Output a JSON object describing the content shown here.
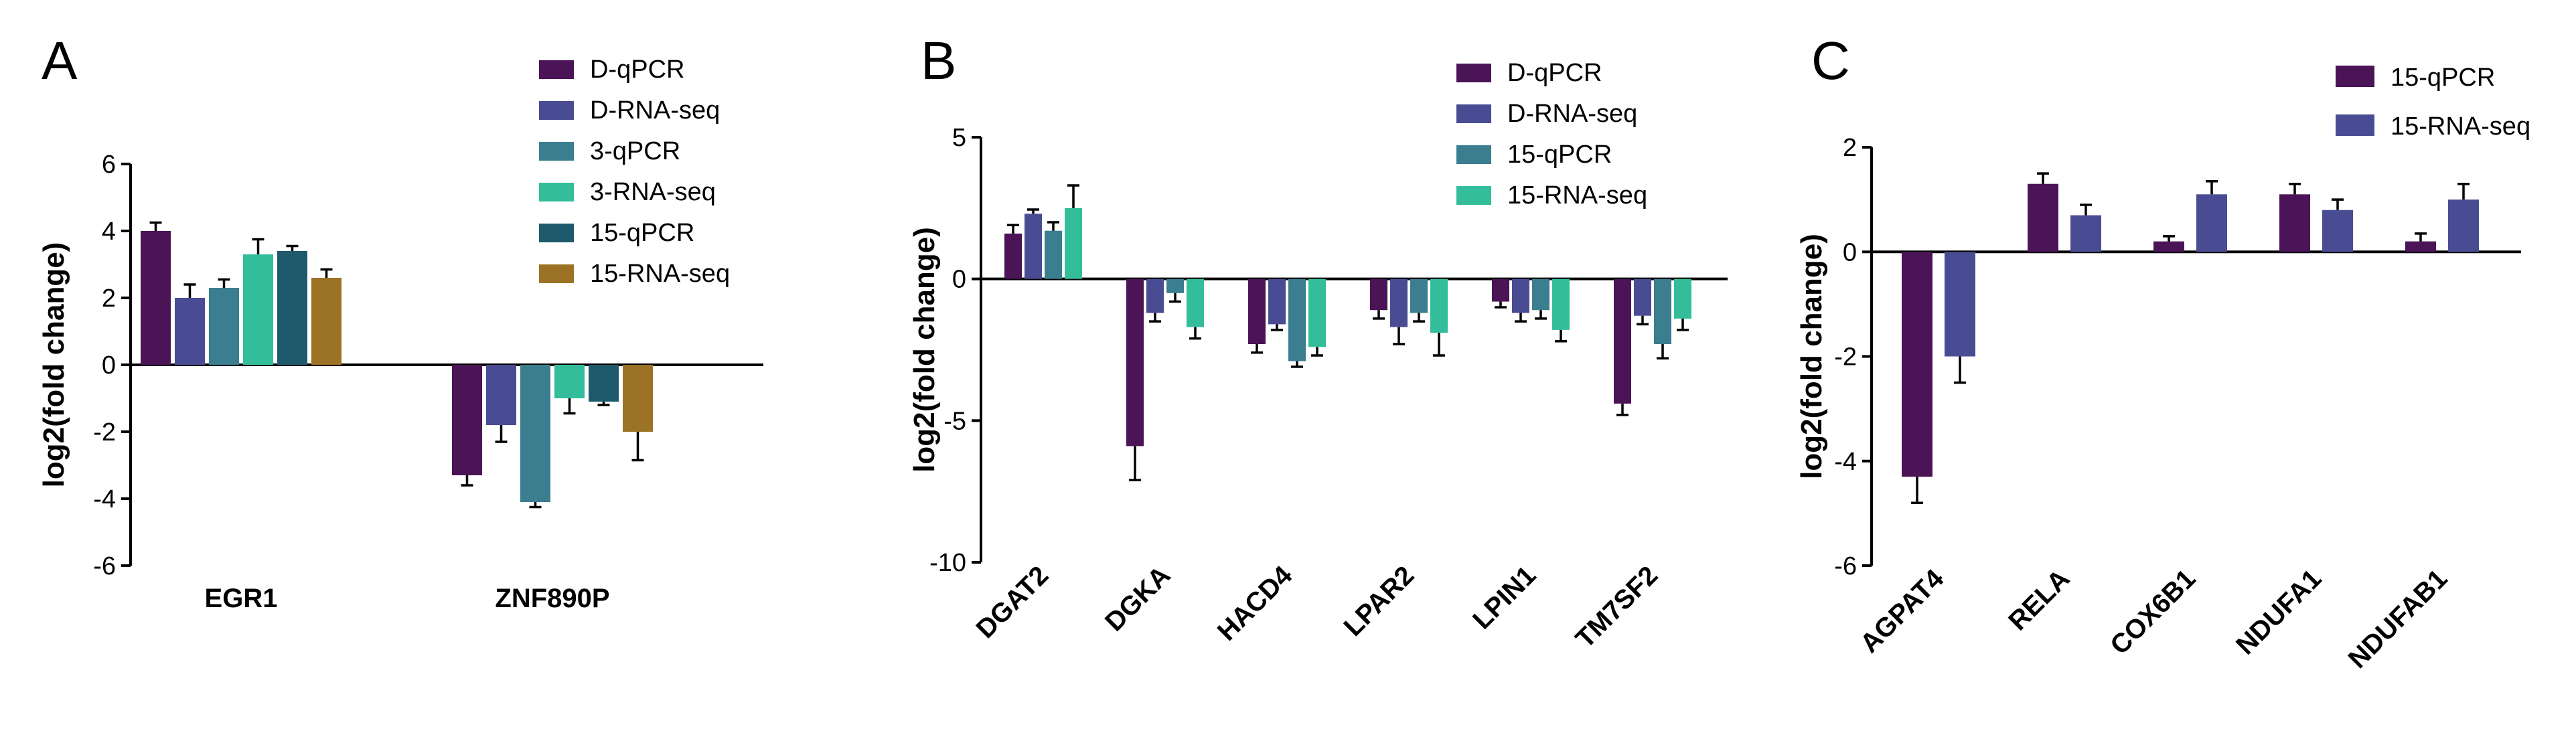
{
  "colors": {
    "D-qPCR": "#4a1456",
    "D-RNA-seq": "#4a4c93",
    "3-qPCR": "#3a7e90",
    "3-RNA-seq": "#33bd9a",
    "15-qPCR": "#1f5a6c",
    "15-RNA-seq": "#9c7325",
    "15-qPCR-B": "#3a7e90",
    "15-RNA-seq-B": "#33bd9a",
    "15-qPCR-C": "#4a1456",
    "15-RNA-seq-C": "#4a4c93"
  },
  "chart_data": [
    {
      "type": "bar",
      "panel": "A",
      "ylabel": "log2(fold change)",
      "ylim": [
        -6,
        6
      ],
      "yticks": [
        -6,
        -4,
        -2,
        0,
        2,
        4,
        6
      ],
      "categories": [
        "EGR1",
        "ZNF890P"
      ],
      "series": [
        {
          "name": "D-qPCR",
          "color_key": "D-qPCR",
          "values": [
            4.0,
            -3.3
          ],
          "errors": [
            0.25,
            0.3
          ]
        },
        {
          "name": "D-RNA-seq",
          "color_key": "D-RNA-seq",
          "values": [
            2.0,
            -1.8
          ],
          "errors": [
            0.4,
            0.5
          ]
        },
        {
          "name": "3-qPCR",
          "color_key": "3-qPCR",
          "values": [
            2.3,
            -4.1
          ],
          "errors": [
            0.25,
            0.15
          ]
        },
        {
          "name": "3-RNA-seq",
          "color_key": "3-RNA-seq",
          "values": [
            3.3,
            -1.0
          ],
          "errors": [
            0.45,
            0.45
          ]
        },
        {
          "name": "15-qPCR",
          "color_key": "15-qPCR",
          "values": [
            3.4,
            -1.1
          ],
          "errors": [
            0.15,
            0.1
          ]
        },
        {
          "name": "15-RNA-seq",
          "color_key": "15-RNA-seq",
          "values": [
            2.6,
            -2.0
          ],
          "errors": [
            0.25,
            0.85
          ]
        }
      ]
    },
    {
      "type": "bar",
      "panel": "B",
      "ylabel": "log2(fold change)",
      "ylim": [
        -10,
        5
      ],
      "yticks": [
        -10,
        -5,
        0,
        5
      ],
      "categories": [
        "DGAT2",
        "DGKA",
        "HACD4",
        "LPAR2",
        "LPIN1",
        "TM7SF2"
      ],
      "series": [
        {
          "name": "D-qPCR",
          "color_key": "D-qPCR",
          "values": [
            1.6,
            -5.9,
            -2.3,
            -1.1,
            -0.8,
            -4.4
          ],
          "errors": [
            0.3,
            1.2,
            0.3,
            0.3,
            0.2,
            0.4
          ]
        },
        {
          "name": "D-RNA-seq",
          "color_key": "D-RNA-seq",
          "values": [
            2.3,
            -1.2,
            -1.6,
            -1.7,
            -1.2,
            -1.3
          ],
          "errors": [
            0.15,
            0.3,
            0.2,
            0.6,
            0.3,
            0.3
          ]
        },
        {
          "name": "15-qPCR",
          "color_key": "15-qPCR-B",
          "values": [
            1.7,
            -0.5,
            -2.9,
            -1.2,
            -1.1,
            -2.3
          ],
          "errors": [
            0.3,
            0.3,
            0.2,
            0.3,
            0.3,
            0.5
          ]
        },
        {
          "name": "15-RNA-seq",
          "color_key": "15-RNA-seq-B",
          "values": [
            2.5,
            -1.7,
            -2.4,
            -1.9,
            -1.8,
            -1.4
          ],
          "errors": [
            0.8,
            0.4,
            0.3,
            0.8,
            0.4,
            0.4
          ]
        }
      ]
    },
    {
      "type": "bar",
      "panel": "C",
      "ylabel": "log2(fold change)",
      "ylim": [
        -6,
        2
      ],
      "yticks": [
        -6,
        -4,
        -2,
        0,
        2
      ],
      "categories": [
        "AGPAT4",
        "RELA",
        "COX6B1",
        "NDUFA1",
        "NDUFAB1"
      ],
      "series": [
        {
          "name": "15-qPCR",
          "color_key": "15-qPCR-C",
          "values": [
            -4.3,
            1.3,
            0.2,
            1.1,
            0.2
          ],
          "errors": [
            0.5,
            0.2,
            0.1,
            0.2,
            0.15
          ]
        },
        {
          "name": "15-RNA-seq",
          "color_key": "15-RNA-seq-C",
          "values": [
            -2.0,
            0.7,
            1.1,
            0.8,
            1.0
          ],
          "errors": [
            0.5,
            0.2,
            0.25,
            0.2,
            0.3
          ]
        }
      ]
    }
  ]
}
